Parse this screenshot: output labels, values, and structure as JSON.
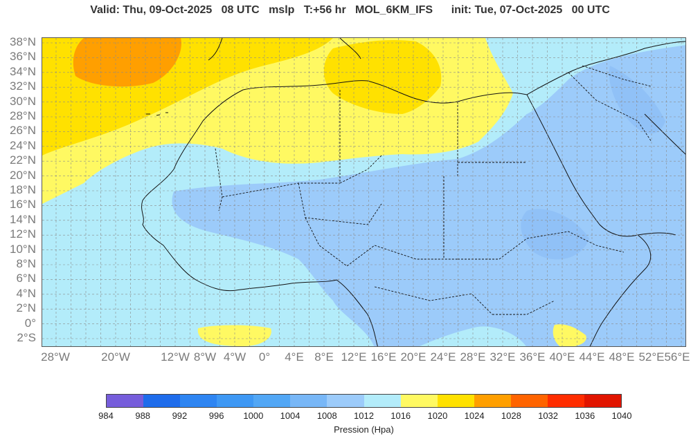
{
  "header": {
    "title": "Valid: Thu, 09-Oct-2025   08 UTC   mslp   T:+56 hr   MOL_6KM_IFS      init: Tue, 07-Oct-2025   00 UTC"
  },
  "map": {
    "lat_labels": [
      "38°N",
      "36°N",
      "34°N",
      "32°N",
      "30°N",
      "28°N",
      "26°N",
      "24°N",
      "22°N",
      "20°N",
      "18°N",
      "16°N",
      "14°N",
      "12°N",
      "10°N",
      "8°N",
      "6°N",
      "4°N",
      "2°N",
      "0°",
      "2°S"
    ],
    "lon_labels": [
      "28°W",
      "20°W",
      "12°W",
      "8°W",
      "4°W",
      "0°",
      "4°E",
      "8°E",
      "12°E",
      "16°E",
      "20°E",
      "24°E",
      "28°E",
      "32°E",
      "36°E",
      "40°E",
      "44°E",
      "48°E",
      "52°E",
      "56°E"
    ],
    "grid": true,
    "fill_colors": {
      "p1008": "#9ccbfa",
      "p1012": "#b3ecfa",
      "p1016": "#fff962",
      "p1020": "#ffe100",
      "p1024": "#ff9f00",
      "ocean_low": "#b3ecfa"
    }
  },
  "colorbar": {
    "title": "Pression (Hpa)",
    "labels": [
      "984",
      "988",
      "992",
      "996",
      "1000",
      "1004",
      "1008",
      "1012",
      "1016",
      "1020",
      "1024",
      "1028",
      "1032",
      "1036",
      "1040"
    ],
    "colors": [
      "#765ddb",
      "#1e6ceb",
      "#2e85f2",
      "#3e98f4",
      "#52a7f5",
      "#78b7f7",
      "#9ccbfa",
      "#b3ecfa",
      "#fff962",
      "#ffe100",
      "#ff9f00",
      "#ff6400",
      "#ff2d00",
      "#e11500"
    ]
  }
}
